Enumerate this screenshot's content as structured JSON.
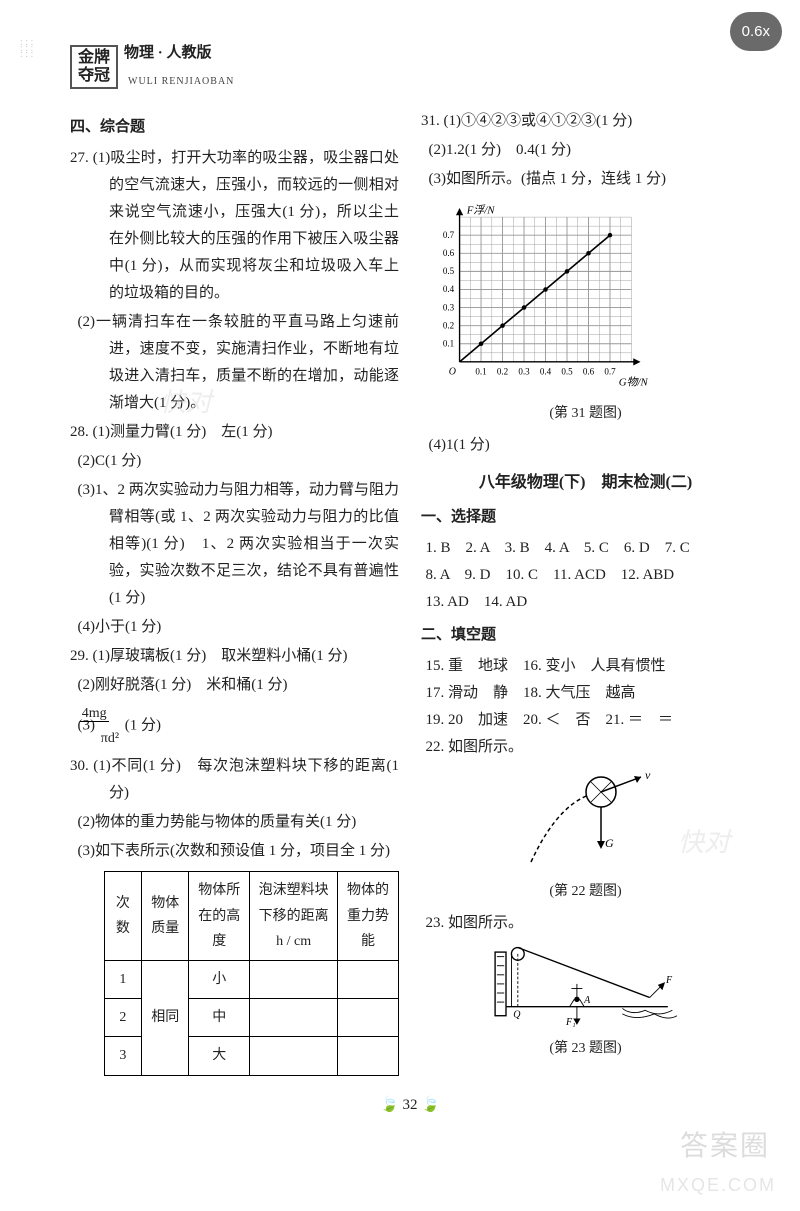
{
  "header": {
    "logo_line1": "金牌",
    "logo_line2": "夺冠",
    "subject": "物理 · 人教版",
    "pinyin": "WULI RENJIAOBAN"
  },
  "speed_badge": "0.6x",
  "left": {
    "section4": "四、综合题",
    "q27_1": "27. (1)吸尘时，打开大功率的吸尘器，吸尘器口处的空气流速大，压强小，而较远的一侧相对来说空气流速小，压强大(1 分)，所以尘土在外侧比较大的压强的作用下被压入吸尘器中(1 分)，从而实现将灰尘和垃圾吸入车上的垃圾箱的目的。",
    "q27_2": "(2)一辆清扫车在一条较脏的平直马路上匀速前进，速度不变，实施清扫作业，不断地有垃圾进入清扫车，质量不断的在增加，动能逐渐增大(1 分)。",
    "q28_1": "28. (1)测量力臂(1 分)　左(1 分)",
    "q28_2": "(2)C(1 分)",
    "q28_3": "(3)1、2 两次实验动力与阻力相等，动力臂与阻力臂相等(或 1、2 两次实验动力与阻力的比值相等)(1 分)　1、2 两次实验相当于一次实验，实验次数不足三次，结论不具有普遍性(1 分)",
    "q28_4": "(4)小于(1 分)",
    "q29_1": "29. (1)厚玻璃板(1 分)　取米塑料小桶(1 分)",
    "q29_2": "(2)刚好脱落(1 分)　米和桶(1 分)",
    "q29_3a": "(3)",
    "q29_3b": "(1 分)",
    "frac_top": "4mg",
    "frac_bot": "πd²",
    "q30_1": "30. (1)不同(1 分)　每次泡沫塑料块下移的距离(1 分)",
    "q30_2": "(2)物体的重力势能与物体的质量有关(1 分)",
    "q30_3": "(3)如下表所示(次数和预设值 1 分，项目全 1 分)",
    "table": {
      "hdr": [
        "次数",
        "物体质量",
        "物体所在的高度",
        "泡沫塑料块下移的距离 h / cm",
        "物体的重力势能"
      ],
      "rows": [
        [
          "1",
          "",
          "小",
          "",
          ""
        ],
        [
          "2",
          "相同",
          "中",
          "",
          ""
        ],
        [
          "3",
          "",
          "大",
          "",
          ""
        ]
      ]
    }
  },
  "right": {
    "q31_1": "31. (1)①④②③或④①②③(1 分)",
    "q31_2": "(2)1.2(1 分)　0.4(1 分)",
    "q31_3": "(3)如图所示。(描点 1 分，连线 1 分)",
    "chart": {
      "y_label": "F浮/N",
      "x_label": "G物/N",
      "x_ticks": [
        "0.1",
        "0.2",
        "0.3",
        "0.4",
        "0.5",
        "0.6",
        "0.7"
      ],
      "y_ticks": [
        "0.1",
        "0.2",
        "0.3",
        "0.4",
        "0.5",
        "0.6",
        "0.7"
      ],
      "points": [
        [
          0.1,
          0.1
        ],
        [
          0.2,
          0.2
        ],
        [
          0.3,
          0.3
        ],
        [
          0.4,
          0.4
        ],
        [
          0.5,
          0.5
        ],
        [
          0.6,
          0.6
        ],
        [
          0.7,
          0.7
        ]
      ],
      "axis_color": "#000",
      "grid_color": "#999",
      "line_color": "#000",
      "bg": "#fff",
      "xlim": [
        0,
        0.8
      ],
      "ylim": [
        0,
        0.8
      ]
    },
    "q31_cap": "(第 31 题图)",
    "q31_4": "(4)1(1 分)",
    "title2": "八年级物理(下)　期末检测(二)",
    "sec1": "一、选择题",
    "mc_line1": "1. B　2. A　3. B　4. A　5. C　6. D　7. C",
    "mc_line2": "8. A　9. D　10. C　11. ACD　12. ABD",
    "mc_line3": "13. AD　14. AD",
    "sec2": "二、填空题",
    "f15": "15. 重　地球　16. 变小　人具有惯性",
    "f17": "17. 滑动　静　18. 大气压　越高",
    "f19": "19. 20　加速　20. ＜　否　21. ＝　＝",
    "f22": "22. 如图所示。",
    "fig22_cap": "(第 22 题图)",
    "f23": "23. 如图所示。",
    "fig23_cap": "(第 23 题图)"
  },
  "pagenum": "32",
  "watermarks": {
    "wm1": "答案圈",
    "wm2": "MXQE.COM",
    "wm3": "快对",
    "wm4": "快对"
  }
}
